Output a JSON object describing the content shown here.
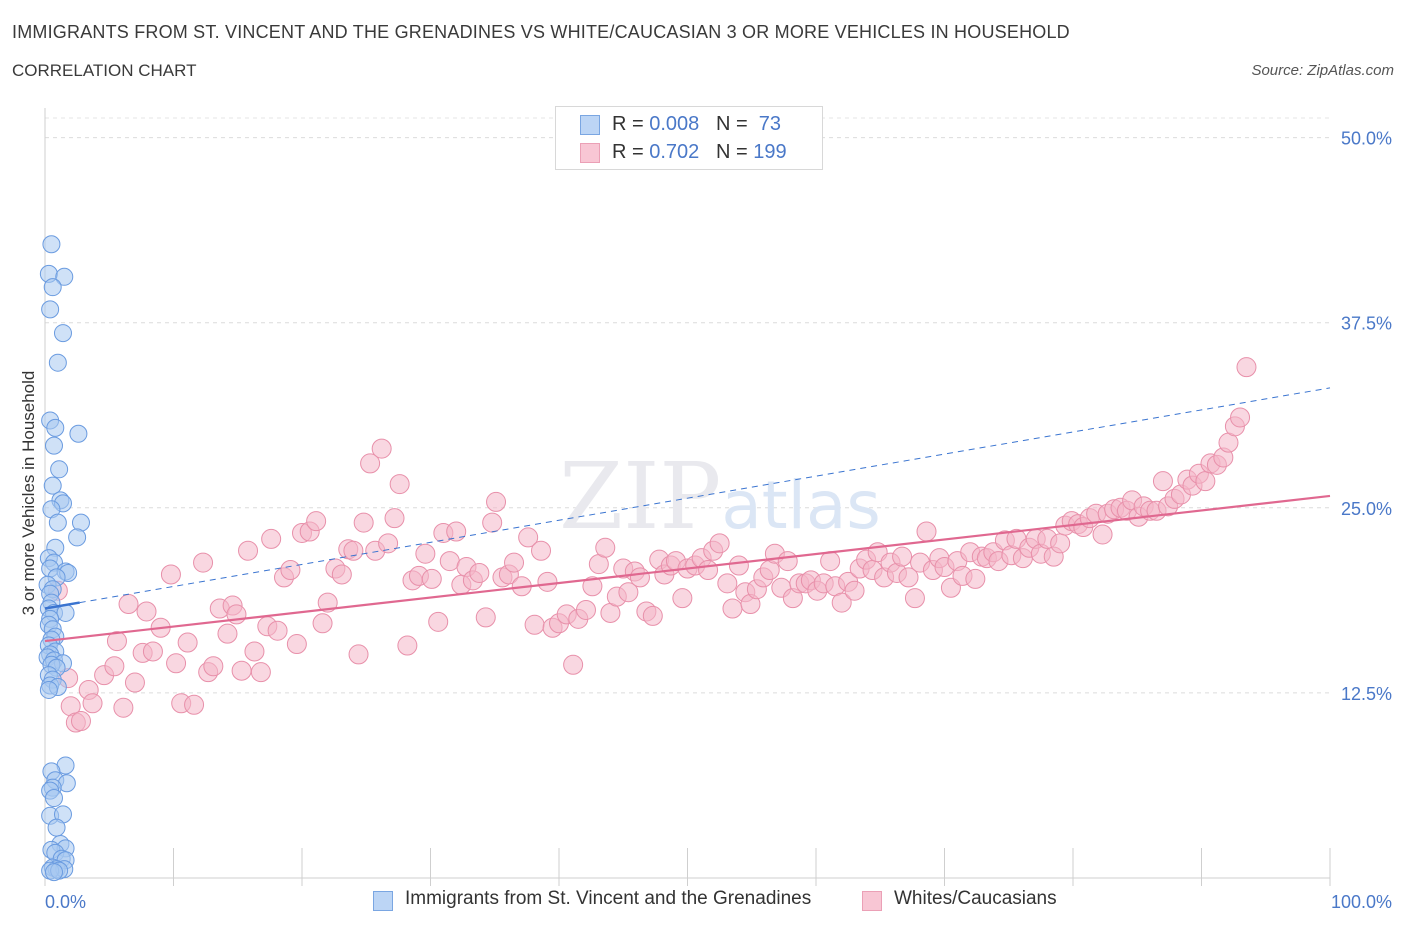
{
  "header": {
    "title": "IMMIGRANTS FROM ST. VINCENT AND THE GRENADINES VS WHITE/CAUCASIAN 3 OR MORE VEHICLES IN HOUSEHOLD",
    "subtitle": "CORRELATION CHART",
    "source": "Source: ZipAtlas.com"
  },
  "watermark": "ZIPatlas",
  "legend": {
    "r_label": "R =",
    "n_label": "N =",
    "rows": [
      {
        "r": "0.008",
        "n": "73"
      },
      {
        "r": "0.702",
        "n": "199"
      }
    ]
  },
  "colors": {
    "blue_fill": "#a8c8f0",
    "blue_stroke": "#6a9be0",
    "blue_line": "#3a74d0",
    "pink_fill": "#f4b6c8",
    "pink_stroke": "#e890aa",
    "pink_line": "#e06890",
    "tick_text": "#4a78c8"
  },
  "chart_data": {
    "type": "scatter",
    "title": "IMMIGRANTS FROM ST. VINCENT AND THE GRENADINES VS WHITE/CAUCASIAN 3 OR MORE VEHICLES IN HOUSEHOLD",
    "xlabel": "",
    "ylabel": "3 or more Vehicles in Household",
    "xlim": [
      0,
      100
    ],
    "ylim": [
      0,
      52
    ],
    "x_ticks": [
      "0.0%",
      "100.0%"
    ],
    "y_ticks": [
      {
        "value": 12.5,
        "label": "12.5%"
      },
      {
        "value": 25.0,
        "label": "25.0%"
      },
      {
        "value": 37.5,
        "label": "37.5%"
      },
      {
        "value": 50.0,
        "label": "50.0%"
      }
    ],
    "grid": true,
    "legend_position": "top-center",
    "series": [
      {
        "name": "Immigrants from St. Vincent and the Grenadines",
        "color": "#a8c8f0",
        "trend": {
          "x": [
            0,
            2.7
          ],
          "y": [
            18.2,
            18.6
          ]
        },
        "trend_extended": {
          "x": [
            2.7,
            100
          ],
          "y": [
            18.6,
            33.1
          ]
        },
        "points": [
          [
            0.5,
            42.8
          ],
          [
            0.3,
            40.8
          ],
          [
            1.5,
            40.6
          ],
          [
            0.6,
            39.9
          ],
          [
            0.4,
            38.4
          ],
          [
            1.4,
            36.8
          ],
          [
            1.0,
            34.8
          ],
          [
            0.4,
            30.9
          ],
          [
            0.8,
            30.4
          ],
          [
            2.6,
            30.0
          ],
          [
            0.7,
            29.2
          ],
          [
            1.1,
            27.6
          ],
          [
            0.6,
            26.5
          ],
          [
            1.2,
            25.5
          ],
          [
            1.4,
            25.3
          ],
          [
            0.5,
            24.9
          ],
          [
            2.8,
            24.0
          ],
          [
            1.0,
            24.0
          ],
          [
            2.5,
            23.0
          ],
          [
            0.8,
            22.3
          ],
          [
            0.3,
            21.6
          ],
          [
            0.7,
            21.3
          ],
          [
            0.4,
            20.9
          ],
          [
            1.6,
            20.7
          ],
          [
            1.8,
            20.6
          ],
          [
            0.9,
            20.3
          ],
          [
            0.2,
            19.8
          ],
          [
            0.6,
            19.5
          ],
          [
            0.4,
            19.2
          ],
          [
            0.5,
            18.6
          ],
          [
            0.3,
            18.2
          ],
          [
            0.7,
            17.9
          ],
          [
            1.6,
            17.9
          ],
          [
            0.4,
            17.5
          ],
          [
            0.3,
            17.1
          ],
          [
            0.6,
            16.8
          ],
          [
            0.8,
            16.3
          ],
          [
            0.5,
            16.1
          ],
          [
            0.3,
            15.7
          ],
          [
            0.8,
            15.3
          ],
          [
            0.4,
            15.1
          ],
          [
            0.2,
            14.9
          ],
          [
            0.7,
            14.7
          ],
          [
            1.4,
            14.5
          ],
          [
            0.5,
            14.4
          ],
          [
            0.9,
            14.2
          ],
          [
            0.3,
            13.7
          ],
          [
            0.6,
            13.4
          ],
          [
            0.4,
            13.0
          ],
          [
            1.0,
            12.9
          ],
          [
            0.3,
            12.7
          ],
          [
            1.6,
            7.6
          ],
          [
            0.5,
            7.2
          ],
          [
            0.8,
            6.6
          ],
          [
            1.7,
            6.4
          ],
          [
            0.6,
            6.1
          ],
          [
            0.4,
            5.9
          ],
          [
            0.7,
            5.4
          ],
          [
            0.4,
            4.2
          ],
          [
            1.4,
            4.3
          ],
          [
            0.9,
            3.4
          ],
          [
            1.2,
            2.3
          ],
          [
            1.6,
            2.0
          ],
          [
            0.5,
            1.9
          ],
          [
            0.8,
            1.7
          ],
          [
            1.3,
            1.3
          ],
          [
            1.6,
            1.2
          ],
          [
            0.6,
            0.7
          ],
          [
            0.9,
            0.6
          ],
          [
            1.5,
            0.6
          ],
          [
            0.4,
            0.5
          ],
          [
            1.1,
            0.5
          ],
          [
            0.7,
            0.4
          ]
        ]
      },
      {
        "name": "Whites/Caucasians",
        "color": "#f4b6c8",
        "trend": {
          "x": [
            0,
            100
          ],
          "y": [
            16.0,
            25.8
          ]
        },
        "points": [
          [
            1.0,
            19.4
          ],
          [
            1.8,
            13.5
          ],
          [
            2.0,
            11.6
          ],
          [
            2.4,
            10.5
          ],
          [
            2.8,
            10.6
          ],
          [
            3.4,
            12.7
          ],
          [
            3.7,
            11.8
          ],
          [
            4.6,
            13.7
          ],
          [
            5.4,
            14.3
          ],
          [
            5.6,
            16.0
          ],
          [
            6.1,
            11.5
          ],
          [
            6.5,
            18.5
          ],
          [
            7.0,
            13.2
          ],
          [
            7.6,
            15.2
          ],
          [
            7.9,
            18.0
          ],
          [
            8.4,
            15.3
          ],
          [
            9.0,
            16.9
          ],
          [
            9.8,
            20.5
          ],
          [
            10.2,
            14.5
          ],
          [
            10.6,
            11.8
          ],
          [
            11.1,
            15.9
          ],
          [
            11.6,
            11.7
          ],
          [
            12.3,
            21.3
          ],
          [
            12.7,
            13.9
          ],
          [
            13.1,
            14.3
          ],
          [
            13.6,
            18.2
          ],
          [
            14.2,
            16.5
          ],
          [
            14.6,
            18.4
          ],
          [
            14.9,
            17.8
          ],
          [
            15.3,
            14.0
          ],
          [
            15.8,
            22.1
          ],
          [
            16.3,
            15.3
          ],
          [
            16.8,
            13.9
          ],
          [
            17.3,
            17.0
          ],
          [
            17.6,
            22.9
          ],
          [
            18.1,
            16.7
          ],
          [
            18.6,
            20.3
          ],
          [
            19.1,
            20.8
          ],
          [
            19.6,
            15.8
          ],
          [
            20.0,
            23.3
          ],
          [
            20.6,
            23.4
          ],
          [
            21.1,
            24.1
          ],
          [
            21.6,
            17.2
          ],
          [
            22.0,
            18.6
          ],
          [
            22.6,
            20.9
          ],
          [
            23.1,
            20.5
          ],
          [
            23.6,
            22.2
          ],
          [
            24.0,
            22.1
          ],
          [
            24.4,
            15.1
          ],
          [
            24.8,
            24.0
          ],
          [
            25.3,
            28.0
          ],
          [
            25.7,
            22.1
          ],
          [
            26.2,
            29.0
          ],
          [
            26.7,
            22.6
          ],
          [
            27.2,
            24.3
          ],
          [
            27.6,
            26.6
          ],
          [
            28.2,
            15.7
          ],
          [
            28.6,
            20.1
          ],
          [
            29.1,
            20.4
          ],
          [
            29.6,
            21.9
          ],
          [
            30.1,
            20.2
          ],
          [
            30.6,
            17.3
          ],
          [
            31.0,
            23.3
          ],
          [
            31.5,
            21.4
          ],
          [
            32.0,
            23.4
          ],
          [
            32.4,
            19.8
          ],
          [
            32.8,
            21.0
          ],
          [
            33.3,
            20.1
          ],
          [
            33.8,
            20.6
          ],
          [
            34.3,
            17.6
          ],
          [
            34.8,
            24.0
          ],
          [
            35.1,
            25.4
          ],
          [
            35.6,
            20.3
          ],
          [
            36.1,
            20.5
          ],
          [
            36.5,
            21.3
          ],
          [
            37.1,
            19.7
          ],
          [
            37.6,
            23.0
          ],
          [
            38.1,
            17.1
          ],
          [
            38.6,
            22.1
          ],
          [
            39.1,
            20.0
          ],
          [
            39.5,
            16.9
          ],
          [
            40.0,
            17.2
          ],
          [
            40.6,
            17.8
          ],
          [
            41.1,
            14.4
          ],
          [
            41.5,
            17.5
          ],
          [
            42.1,
            18.1
          ],
          [
            42.6,
            19.7
          ],
          [
            43.1,
            21.2
          ],
          [
            43.6,
            22.3
          ],
          [
            44.0,
            17.9
          ],
          [
            44.5,
            19.0
          ],
          [
            45.0,
            20.9
          ],
          [
            45.4,
            19.3
          ],
          [
            45.9,
            20.7
          ],
          [
            46.3,
            20.3
          ],
          [
            46.8,
            18.0
          ],
          [
            47.3,
            17.7
          ],
          [
            47.8,
            21.5
          ],
          [
            48.2,
            20.5
          ],
          [
            48.7,
            21.1
          ],
          [
            49.1,
            21.4
          ],
          [
            49.6,
            18.9
          ],
          [
            50.0,
            20.9
          ],
          [
            50.6,
            21.1
          ],
          [
            51.1,
            21.6
          ],
          [
            51.6,
            20.8
          ],
          [
            52.0,
            22.1
          ],
          [
            52.5,
            22.6
          ],
          [
            53.1,
            19.9
          ],
          [
            53.5,
            18.2
          ],
          [
            54.0,
            21.1
          ],
          [
            54.5,
            19.3
          ],
          [
            54.9,
            18.5
          ],
          [
            55.4,
            19.5
          ],
          [
            55.9,
            20.3
          ],
          [
            56.4,
            20.8
          ],
          [
            56.8,
            21.9
          ],
          [
            57.3,
            19.6
          ],
          [
            57.8,
            21.4
          ],
          [
            58.2,
            18.9
          ],
          [
            58.7,
            19.9
          ],
          [
            59.2,
            19.9
          ],
          [
            59.6,
            20.1
          ],
          [
            60.1,
            19.4
          ],
          [
            60.6,
            19.9
          ],
          [
            61.1,
            21.4
          ],
          [
            61.5,
            19.7
          ],
          [
            62.0,
            18.6
          ],
          [
            62.5,
            20.0
          ],
          [
            63.0,
            19.4
          ],
          [
            63.4,
            20.9
          ],
          [
            63.9,
            21.5
          ],
          [
            64.4,
            20.8
          ],
          [
            64.8,
            22.0
          ],
          [
            65.3,
            20.3
          ],
          [
            65.8,
            21.3
          ],
          [
            66.3,
            20.6
          ],
          [
            66.7,
            21.7
          ],
          [
            67.2,
            20.3
          ],
          [
            67.7,
            18.9
          ],
          [
            68.1,
            21.3
          ],
          [
            68.6,
            23.4
          ],
          [
            69.1,
            20.8
          ],
          [
            69.6,
            21.6
          ],
          [
            70.0,
            21.0
          ],
          [
            70.5,
            19.6
          ],
          [
            71.0,
            21.4
          ],
          [
            71.4,
            20.4
          ],
          [
            72.0,
            22.0
          ],
          [
            72.4,
            20.2
          ],
          [
            72.9,
            21.7
          ],
          [
            73.3,
            21.6
          ],
          [
            73.8,
            22.0
          ],
          [
            74.2,
            21.4
          ],
          [
            74.7,
            22.8
          ],
          [
            75.2,
            21.8
          ],
          [
            75.6,
            22.9
          ],
          [
            76.1,
            21.6
          ],
          [
            76.6,
            22.3
          ],
          [
            77.1,
            22.9
          ],
          [
            77.5,
            21.9
          ],
          [
            78.0,
            22.9
          ],
          [
            78.5,
            21.7
          ],
          [
            79.0,
            22.6
          ],
          [
            79.4,
            23.8
          ],
          [
            79.9,
            24.1
          ],
          [
            80.4,
            23.9
          ],
          [
            80.8,
            23.7
          ],
          [
            81.3,
            24.3
          ],
          [
            81.8,
            24.6
          ],
          [
            82.3,
            23.2
          ],
          [
            82.7,
            24.6
          ],
          [
            83.2,
            24.9
          ],
          [
            83.7,
            25.0
          ],
          [
            84.2,
            24.8
          ],
          [
            84.6,
            25.5
          ],
          [
            85.1,
            24.4
          ],
          [
            85.5,
            25.1
          ],
          [
            86.0,
            24.8
          ],
          [
            86.5,
            24.8
          ],
          [
            87.0,
            26.8
          ],
          [
            87.4,
            25.1
          ],
          [
            87.9,
            25.6
          ],
          [
            88.4,
            25.9
          ],
          [
            88.9,
            26.9
          ],
          [
            89.3,
            26.5
          ],
          [
            89.8,
            27.3
          ],
          [
            90.3,
            26.8
          ],
          [
            90.7,
            28.0
          ],
          [
            91.2,
            27.9
          ],
          [
            91.7,
            28.4
          ],
          [
            92.1,
            29.4
          ],
          [
            92.6,
            30.5
          ],
          [
            93.0,
            31.1
          ],
          [
            93.5,
            34.5
          ]
        ]
      }
    ]
  }
}
